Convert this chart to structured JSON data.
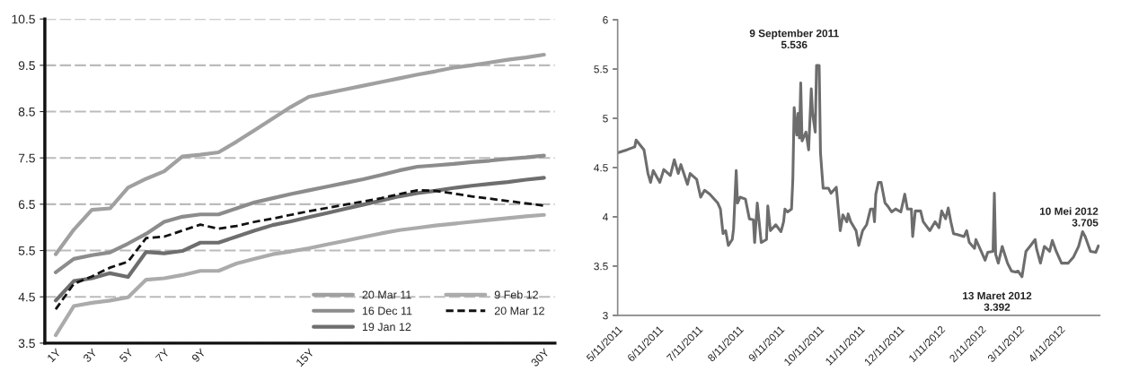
{
  "chart_data": [
    {
      "type": "line",
      "categories": [
        "1Y",
        null,
        "3Y",
        null,
        "5Y",
        null,
        "7Y",
        null,
        "9Y",
        null,
        null,
        null,
        null,
        null,
        "15Y",
        null,
        null,
        null,
        null,
        null,
        null,
        null,
        null,
        null,
        null,
        null,
        null,
        "30Y"
      ],
      "ylim": [
        3.5,
        10.5
      ],
      "yticks": [
        3.5,
        4.5,
        5.5,
        6.5,
        7.5,
        8.5,
        9.5,
        10.5
      ],
      "grid": "y",
      "legend": "bottom right",
      "series": [
        {
          "name": "20 Mar 11",
          "color": "#a0a0a0",
          "values": [
            5.42,
            5.95,
            6.38,
            6.41,
            6.86,
            7.05,
            7.21,
            7.53,
            7.57,
            7.62,
            7.85,
            8.1,
            8.35,
            8.6,
            8.82,
            8.9,
            8.98,
            9.06,
            9.14,
            9.22,
            9.3,
            9.37,
            9.45,
            9.5,
            9.56,
            9.62,
            9.67,
            9.73
          ]
        },
        {
          "name": "16 Dec 11",
          "color": "#8c8c8c",
          "values": [
            5.03,
            5.32,
            5.4,
            5.46,
            5.65,
            5.86,
            6.12,
            6.23,
            6.28,
            6.28,
            6.41,
            6.54,
            6.63,
            6.72,
            6.8,
            6.88,
            6.96,
            7.04,
            7.13,
            7.23,
            7.31,
            7.34,
            7.37,
            7.41,
            7.44,
            7.48,
            7.51,
            7.55
          ]
        },
        {
          "name": "19 Jan 12",
          "color": "#6e6e6e",
          "values": [
            4.42,
            4.84,
            4.9,
            5.01,
            4.93,
            5.47,
            5.44,
            5.49,
            5.67,
            5.67,
            5.8,
            5.93,
            6.05,
            6.13,
            6.22,
            6.31,
            6.4,
            6.49,
            6.58,
            6.67,
            6.74,
            6.79,
            6.85,
            6.9,
            6.94,
            6.98,
            7.03,
            7.07
          ]
        },
        {
          "name": "9 Feb 12",
          "color": "#ababab",
          "values": [
            3.67,
            4.3,
            4.37,
            4.42,
            4.49,
            4.87,
            4.9,
            4.97,
            5.06,
            5.06,
            5.22,
            5.32,
            5.42,
            5.48,
            5.55,
            5.63,
            5.71,
            5.79,
            5.87,
            5.94,
            5.99,
            6.04,
            6.08,
            6.12,
            6.16,
            6.2,
            6.24,
            6.27
          ]
        },
        {
          "name": "20 Mar 12",
          "color": "#111111",
          "line_style": "dashed",
          "values": [
            4.23,
            4.78,
            4.94,
            5.13,
            5.26,
            5.77,
            5.8,
            5.93,
            6.06,
            5.97,
            6.03,
            6.12,
            6.19,
            6.27,
            6.35,
            6.42,
            6.49,
            6.56,
            6.63,
            6.72,
            6.8,
            6.79,
            6.73,
            6.67,
            6.62,
            6.57,
            6.52,
            6.47
          ]
        }
      ]
    },
    {
      "type": "line",
      "x": [
        "2011-05-11",
        "2011-05-18",
        "2011-05-24",
        "2011-05-25",
        "2011-05-31",
        "2011-06-03",
        "2011-06-05",
        "2011-06-07",
        "2011-06-12",
        "2011-06-15",
        "2011-06-20",
        "2011-06-23",
        "2011-06-26",
        "2011-06-28",
        "2011-07-03",
        "2011-07-05",
        "2011-07-10",
        "2011-07-13",
        "2011-07-16",
        "2011-07-20",
        "2011-07-26",
        "2011-07-28",
        "2011-07-30",
        "2011-08-01",
        "2011-08-03",
        "2011-08-06",
        "2011-08-07",
        "2011-08-09",
        "2011-08-10",
        "2011-08-12",
        "2011-08-16",
        "2011-08-19",
        "2011-08-22",
        "2011-08-23",
        "2011-08-25",
        "2011-08-28",
        "2011-09-01",
        "2011-09-02",
        "2011-09-04",
        "2011-09-08",
        "2011-09-12",
        "2011-09-14",
        "2011-09-15",
        "2011-09-17",
        "2011-09-20",
        "2011-09-21",
        "2011-09-22",
        "2011-09-24",
        "2011-09-25",
        "2011-09-26",
        "2011-09-27",
        "2011-09-28",
        "2011-10-01",
        "2011-10-03",
        "2011-10-05",
        "2011-10-06",
        "2011-10-08",
        "2011-10-09",
        "2011-10-11",
        "2011-10-12",
        "2011-10-13",
        "2011-10-14",
        "2011-10-18",
        "2011-10-20",
        "2011-10-24",
        "2011-10-27",
        "2011-10-29",
        "2011-11-01",
        "2011-11-02",
        "2011-11-04",
        "2011-11-08",
        "2011-11-10",
        "2011-11-13",
        "2011-11-16",
        "2011-11-19",
        "2011-11-21",
        "2011-11-22",
        "2011-11-23",
        "2011-11-25",
        "2011-11-27",
        "2011-11-30",
        "2011-12-02",
        "2011-12-05",
        "2011-12-08",
        "2011-12-12",
        "2011-12-15",
        "2011-12-17",
        "2011-12-20",
        "2011-12-21",
        "2011-12-23",
        "2011-12-27",
        "2011-12-29",
        "2012-01-03",
        "2012-01-07",
        "2012-01-10",
        "2012-01-12",
        "2012-01-15",
        "2012-01-17",
        "2012-01-19",
        "2012-01-21",
        "2012-01-24",
        "2012-01-29",
        "2012-01-31",
        "2012-02-02",
        "2012-02-06",
        "2012-02-07",
        "2012-02-11",
        "2012-02-14",
        "2012-02-16",
        "2012-02-20",
        "2012-02-21",
        "2012-02-22",
        "2012-02-24",
        "2012-02-27",
        "2012-03-02",
        "2012-03-05",
        "2012-03-08",
        "2012-03-10",
        "2012-03-13",
        "2012-03-16",
        "2012-03-19",
        "2012-03-23",
        "2012-03-24",
        "2012-03-27",
        "2012-03-30",
        "2012-04-03",
        "2012-04-05",
        "2012-04-08",
        "2012-04-12",
        "2012-04-17",
        "2012-04-21",
        "2012-04-25",
        "2012-04-28",
        "2012-04-30",
        "2012-05-04",
        "2012-05-08",
        "2012-05-10"
      ],
      "series": [
        {
          "color": "#6d6d6d",
          "values": [
            4.65,
            4.68,
            4.71,
            4.78,
            4.68,
            4.44,
            4.35,
            4.47,
            4.35,
            4.48,
            4.42,
            4.58,
            4.44,
            4.53,
            4.33,
            4.44,
            4.38,
            4.2,
            4.27,
            4.23,
            4.14,
            4.08,
            3.83,
            3.86,
            3.71,
            3.77,
            3.88,
            4.47,
            4.14,
            4.2,
            4.18,
            3.98,
            3.97,
            3.74,
            4.14,
            3.74,
            3.77,
            4.11,
            3.86,
            3.92,
            3.85,
            3.95,
            4.08,
            4.05,
            4.08,
            4.38,
            5.11,
            4.83,
            5.05,
            4.8,
            5.36,
            4.77,
            4.86,
            4.68,
            5.3,
            5.05,
            4.86,
            5.536,
            5.536,
            4.65,
            4.47,
            4.29,
            4.29,
            4.24,
            4.3,
            3.86,
            4.02,
            3.95,
            4.03,
            3.95,
            3.86,
            3.71,
            3.86,
            3.92,
            4.08,
            4.08,
            3.95,
            4.23,
            4.35,
            4.35,
            4.14,
            4.11,
            4.05,
            4.08,
            4.05,
            4.23,
            4.08,
            4.08,
            3.8,
            4.06,
            4.06,
            3.95,
            3.86,
            3.95,
            3.89,
            4.06,
            3.98,
            4.09,
            3.95,
            3.83,
            3.82,
            3.8,
            3.86,
            3.74,
            3.68,
            3.77,
            3.65,
            3.56,
            3.64,
            3.65,
            4.24,
            3.62,
            3.53,
            3.7,
            3.53,
            3.45,
            3.44,
            3.45,
            3.392,
            3.65,
            3.7,
            3.77,
            3.68,
            3.53,
            3.7,
            3.65,
            3.76,
            3.65,
            3.53,
            3.53,
            3.59,
            3.7,
            3.85,
            3.8,
            3.65,
            3.64,
            3.705
          ]
        }
      ],
      "xlim": [
        "2011-05-11",
        "2012-05-11"
      ],
      "xticks": [
        {
          "value": "2011-05-11",
          "label": "5/11/2011"
        },
        {
          "value": "2011-06-11",
          "label": "6/11/2011"
        },
        {
          "value": "2011-07-11",
          "label": "7/11/2011"
        },
        {
          "value": "2011-08-11",
          "label": "8/11/2011"
        },
        {
          "value": "2011-09-11",
          "label": "9/11/2011"
        },
        {
          "value": "2011-10-11",
          "label": "10/11/2011"
        },
        {
          "value": "2011-11-11",
          "label": "11/11/2011"
        },
        {
          "value": "2011-12-11",
          "label": "12/11/2011"
        },
        {
          "value": "2012-01-11",
          "label": "1/11/2012"
        },
        {
          "value": "2012-02-11",
          "label": "2/11/2012"
        },
        {
          "value": "2012-03-11",
          "label": "3/11/2012"
        },
        {
          "value": "2012-04-11",
          "label": "4/11/2012"
        }
      ],
      "ylim": [
        3,
        6
      ],
      "yticks": [
        3,
        3.5,
        4,
        4.5,
        5,
        5.5,
        6
      ],
      "annotations": [
        {
          "text": "9 September 2011\n5.536",
          "x": "2011-10-11",
          "y": 5.536
        },
        {
          "text": "13 Maret 2012\n3.392",
          "x": "2012-03-13",
          "y": 3.392
        },
        {
          "text": "10 Mei 2012\n3.705",
          "x": "2012-05-10",
          "y": 3.705
        }
      ]
    }
  ]
}
